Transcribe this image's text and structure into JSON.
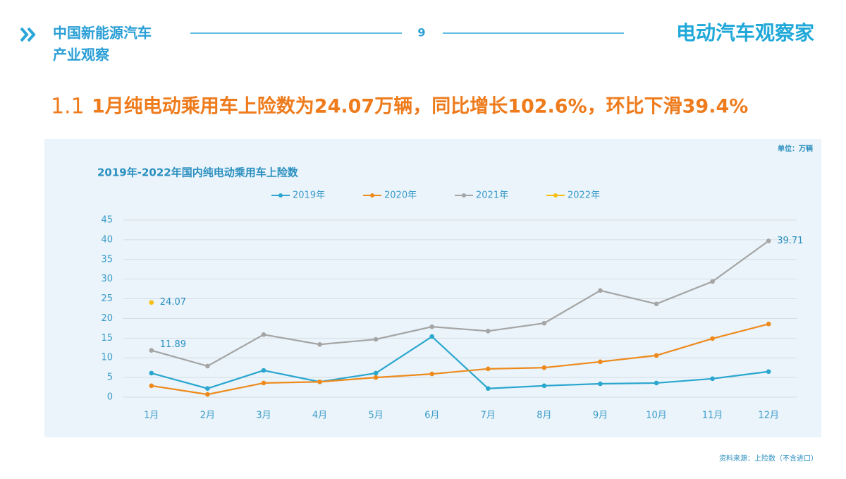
{
  "header": {
    "section": [
      "中国新能源汽车",
      "产业观察"
    ],
    "page_number": "9",
    "brand": "电动汽车观察家"
  },
  "heading": {
    "number": "1.1",
    "text": "1月纯电动乘用车上险数为24.07万辆，同比增长102.6%，环比下滑39.4%"
  },
  "chart_data": {
    "type": "line",
    "title": "2019年-2022年国内纯电动乘用车上险数",
    "unit_note": "单位：万辆",
    "source": "资料来源：上险数（不含进口）",
    "categories": [
      "1月",
      "2月",
      "3月",
      "4月",
      "5月",
      "6月",
      "7月",
      "8月",
      "9月",
      "10月",
      "11月",
      "12月"
    ],
    "series": [
      {
        "name": "2019年",
        "color": "#2ba6cf",
        "values": [
          6.1,
          2.2,
          6.8,
          3.9,
          6.1,
          15.4,
          2.2,
          2.9,
          3.4,
          3.6,
          4.7,
          6.5
        ]
      },
      {
        "name": "2020年",
        "color": "#ee8a1c",
        "values": [
          2.9,
          0.7,
          3.6,
          3.9,
          5.0,
          5.9,
          7.2,
          7.5,
          9.0,
          10.6,
          14.9,
          18.6
        ]
      },
      {
        "name": "2021年",
        "color": "#a5a5a5",
        "values": [
          11.89,
          7.9,
          15.9,
          13.4,
          14.7,
          17.9,
          16.8,
          18.8,
          27.1,
          23.7,
          29.4,
          39.71
        ],
        "value_labels": [
          "11.89",
          null,
          null,
          null,
          null,
          null,
          null,
          null,
          null,
          null,
          null,
          "39.71"
        ]
      },
      {
        "name": "2022年",
        "color": "#f5c013",
        "values": [
          24.07,
          null,
          null,
          null,
          null,
          null,
          null,
          null,
          null,
          null,
          null,
          null
        ],
        "value_labels": [
          "24.07",
          null,
          null,
          null,
          null,
          null,
          null,
          null,
          null,
          null,
          null,
          null
        ]
      }
    ],
    "ylim": [
      0,
      45
    ],
    "yticks": [
      0,
      5,
      10,
      15,
      20,
      25,
      30,
      35,
      40,
      45
    ],
    "grid": true,
    "legend": "top"
  }
}
